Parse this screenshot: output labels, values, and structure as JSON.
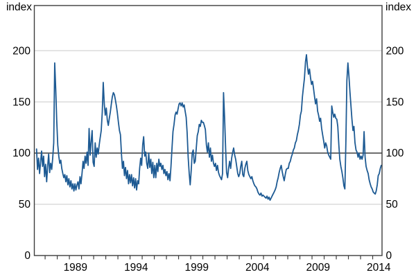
{
  "labels": {
    "left_axis_unit": "index",
    "right_axis_unit": "index"
  },
  "chart_data": {
    "type": "line",
    "title": "",
    "ylabel_left": "index",
    "ylabel_right": "index",
    "ylim": [
      0,
      244
    ],
    "y_ticks": [
      0,
      50,
      100,
      150,
      200
    ],
    "y_tick_labels": [
      "0",
      "50",
      "100",
      "150",
      "200"
    ],
    "y_ticks_both_sides": true,
    "baseline_value": 100,
    "gridline_values": [
      50,
      150,
      200
    ],
    "grid": true,
    "legend": "none",
    "x_domain": [
      1986.11,
      2014.77
    ],
    "x_minor_tick_first_year": 1987,
    "x_minor_tick_last_year": 2014,
    "x_minor_tick_interval_years": 1,
    "x_labeled_years": [
      1989,
      1994,
      1999,
      2004,
      2009,
      2014
    ],
    "colors": {
      "line": "#1d5a93",
      "baseline": "#4d4d4d",
      "gridline": "#c9c9c9",
      "border": "#3c3c3c",
      "tick": "#3c3c3c",
      "text": "#000000",
      "background": "#ffffff"
    },
    "series": [
      {
        "name": "index",
        "color": "#1d5a93",
        "frequency": "monthly",
        "start_year": 1986,
        "start_month": 4,
        "values": [
          104,
          84,
          95,
          80,
          91,
          102,
          87,
          97,
          77,
          89,
          72,
          87,
          99,
          81,
          90,
          84,
          95,
          110,
          188,
          162,
          132,
          108,
          97,
          90,
          93,
          85,
          80,
          76,
          79,
          72,
          78,
          69,
          75,
          67,
          73,
          65,
          70,
          63,
          70,
          64,
          69,
          72,
          65,
          77,
          70,
          80,
          92,
          85,
          97,
          90,
          101,
          88,
          124,
          98,
          111,
          122,
          91,
          87,
          110,
          96,
          105,
          99,
          108,
          115,
          122,
          140,
          169,
          148,
          137,
          144,
          132,
          127,
          134,
          140,
          148,
          155,
          159,
          157,
          152,
          146,
          139,
          130,
          122,
          118,
          99,
          85,
          92,
          78,
          86,
          75,
          83,
          70,
          79,
          71,
          79,
          68,
          76,
          66,
          75,
          64,
          73,
          70,
          85,
          95,
          88,
          108,
          116,
          97,
          101,
          90,
          85,
          100,
          86,
          94,
          80,
          91,
          76,
          88,
          76,
          90,
          82,
          94,
          87,
          90,
          84,
          88,
          80,
          84,
          78,
          82,
          74,
          80,
          73,
          87,
          105,
          121,
          128,
          137,
          140,
          138,
          143,
          148,
          149,
          146,
          149,
          145,
          147,
          141,
          135,
          120,
          96,
          80,
          69,
          83,
          100,
          103,
          90,
          92,
          105,
          117,
          121,
          128,
          126,
          132,
          130,
          130,
          127,
          123,
          108,
          101,
          110,
          96,
          105,
          92,
          98,
          90,
          87,
          90,
          83,
          88,
          81,
          78,
          76,
          74,
          80,
          159,
          135,
          105,
          81,
          76,
          85,
          92,
          85,
          95,
          101,
          105,
          98,
          94,
          87,
          80,
          77,
          80,
          87,
          92,
          79,
          77,
          85,
          89,
          92,
          83,
          79,
          77,
          75,
          77,
          73,
          70,
          68,
          67,
          65,
          62,
          60,
          59,
          61,
          58,
          59,
          58,
          57,
          56,
          58,
          55,
          57,
          54,
          56,
          58,
          60,
          62,
          64,
          67,
          72,
          76,
          81,
          85,
          88,
          82,
          77,
          73,
          79,
          84,
          85,
          85,
          90,
          92,
          96,
          99,
          103,
          105,
          110,
          112,
          118,
          122,
          128,
          137,
          141,
          155,
          164,
          173,
          189,
          196,
          184,
          177,
          182,
          174,
          167,
          170,
          163,
          155,
          148,
          153,
          141,
          137,
          131,
          134,
          124,
          118,
          112,
          105,
          110,
          107,
          101,
          98,
          96,
          94,
          146,
          140,
          135,
          138,
          134,
          133,
          126,
          108,
          94,
          87,
          82,
          76,
          68,
          65,
          112,
          171,
          188,
          175,
          160,
          146,
          133,
          122,
          126,
          110,
          103,
          101,
          96,
          100,
          94,
          97,
          94,
          98,
          121,
          96,
          87,
          83,
          80,
          74,
          70,
          67,
          65,
          62,
          61,
          60,
          63,
          69,
          78,
          80,
          85,
          88
        ]
      }
    ]
  }
}
